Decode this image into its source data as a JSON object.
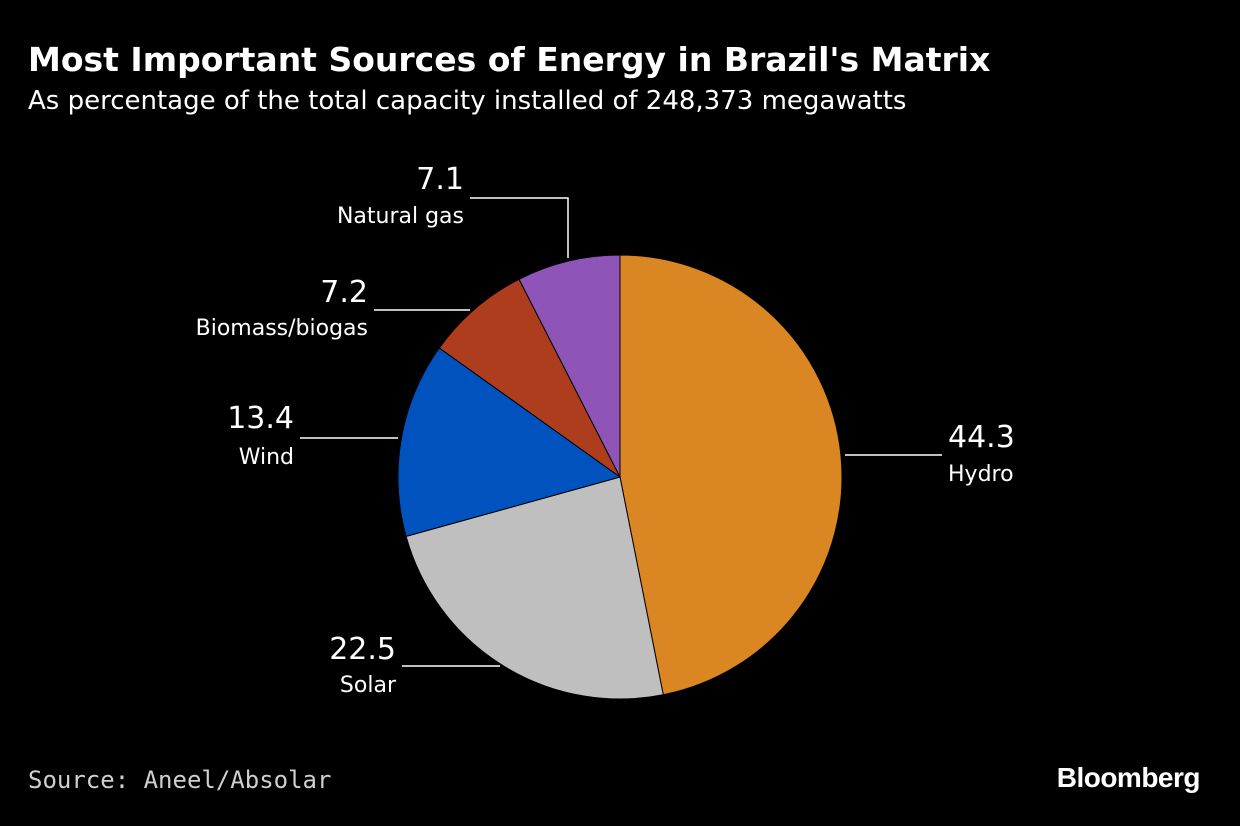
{
  "chart_data": {
    "type": "pie",
    "title": "Most Important Sources of Energy in Brazil's Matrix",
    "subtitle": "As percentage of the total capacity installed of 248,373 megawatts",
    "slices": [
      {
        "label": "Hydro",
        "value": 44.3,
        "display": "44.3",
        "color": "#DA8723"
      },
      {
        "label": "Solar",
        "value": 22.5,
        "display": "22.5",
        "color": "#BFBFBF"
      },
      {
        "label": "Wind",
        "value": 13.4,
        "display": "13.4",
        "color": "#0052BF"
      },
      {
        "label": "Biomass/biogas",
        "value": 7.2,
        "display": "7.2",
        "color": "#AD3D1D"
      },
      {
        "label": "Natural gas",
        "value": 7.1,
        "display": "7.1",
        "color": "#8E54B8"
      }
    ],
    "source": "Source: Aneel/Absolar",
    "brand": "Bloomberg"
  }
}
